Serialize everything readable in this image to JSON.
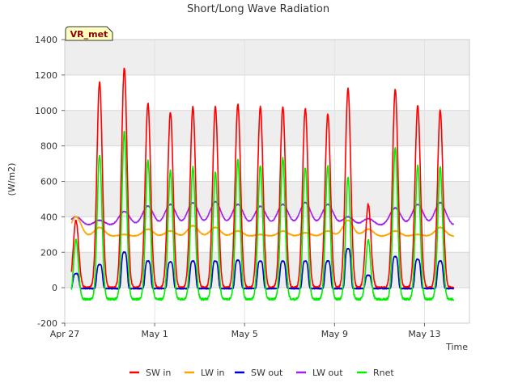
{
  "chart_data": {
    "type": "line",
    "title": "Short/Long Wave Radiation",
    "xlabel": "Time",
    "ylabel": "(W/m2)",
    "badge": "VR_met",
    "xlim": [
      0,
      18
    ],
    "ylim": [
      -200,
      1400
    ],
    "yticks": [
      -200,
      0,
      200,
      400,
      600,
      800,
      1000,
      1200,
      1400
    ],
    "xticks": [
      {
        "day": 0,
        "label": "Apr 27"
      },
      {
        "day": 4,
        "label": "May 1"
      },
      {
        "day": 8,
        "label": "May 5"
      },
      {
        "day": 12,
        "label": "May 9"
      },
      {
        "day": 16,
        "label": "May 13"
      }
    ],
    "grid": true,
    "legend_position": "bottom",
    "series_meta": [
      {
        "name": "SW in",
        "color": "#ff0000"
      },
      {
        "name": "LW in",
        "color": "#ffa500"
      },
      {
        "name": "SW out",
        "color": "#0000cd"
      },
      {
        "name": "LW out",
        "color": "#a020f0"
      },
      {
        "name": "Rnet",
        "color": "#00ee00"
      }
    ],
    "x_days": [
      0.3,
      17.3
    ],
    "daily_peaks_approx": {
      "day_offsets": [
        0.5,
        1.55,
        2.65,
        3.7,
        4.7,
        5.7,
        6.7,
        7.7,
        8.7,
        9.7,
        10.7,
        11.7,
        12.6,
        13.5,
        14.7,
        15.7,
        16.7
      ],
      "SW_in": [
        380,
        1160,
        1240,
        1040,
        990,
        1020,
        1020,
        1035,
        1020,
        1020,
        1010,
        980,
        1125,
        470,
        1120,
        1025,
        1000
      ],
      "LW_in": [
        400,
        340,
        300,
        330,
        320,
        350,
        340,
        320,
        300,
        320,
        310,
        320,
        380,
        330,
        320,
        300,
        340
      ],
      "SW_out": [
        80,
        130,
        200,
        150,
        145,
        150,
        150,
        155,
        150,
        150,
        150,
        150,
        220,
        70,
        175,
        160,
        150
      ],
      "LW_out": [
        400,
        380,
        430,
        460,
        470,
        480,
        485,
        470,
        460,
        470,
        480,
        470,
        400,
        390,
        450,
        470,
        480
      ],
      "Rnet": [
        270,
        750,
        880,
        720,
        660,
        680,
        650,
        720,
        690,
        730,
        680,
        690,
        620,
        270,
        790,
        690,
        680
      ]
    },
    "night_baseline_approx": {
      "SW_in": 0,
      "LW_in": 290,
      "SW_out": -5,
      "LW_out": 350,
      "Rnet": -65
    }
  }
}
